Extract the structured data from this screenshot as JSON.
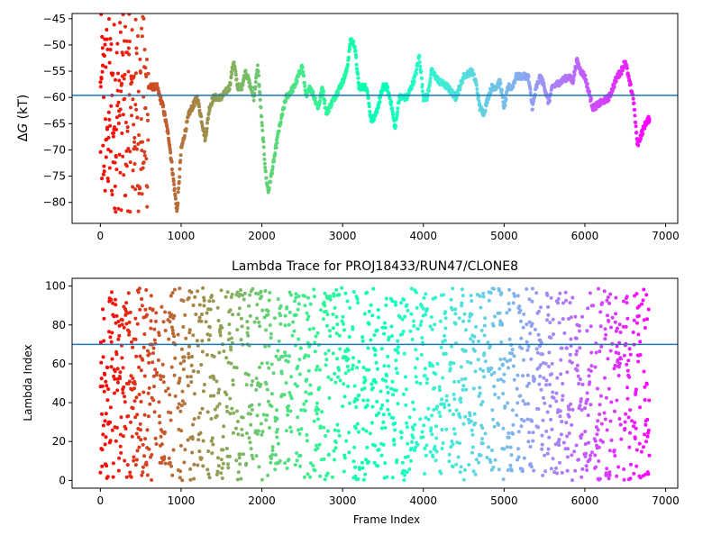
{
  "figure_title": "",
  "chart_data": [
    {
      "type": "scatter",
      "title": "",
      "xlabel": "",
      "ylabel": "ΔG (kT)",
      "ylabel_italic_part": "G",
      "xlim": [
        -350,
        7150
      ],
      "ylim": [
        -84,
        -44
      ],
      "xticks": [
        0,
        1000,
        2000,
        3000,
        4000,
        5000,
        6000,
        7000
      ],
      "yticks": [
        -80,
        -75,
        -70,
        -65,
        -60,
        -55,
        -50,
        -45
      ],
      "hline": -59.6,
      "hline_color": "#1f77b4",
      "colormap": "rainbow (red at start → violet at end)",
      "n_frames": 6800,
      "trace_keypoints": {
        "x": [
          600,
          700,
          780,
          850,
          900,
          950,
          1000,
          1100,
          1200,
          1300,
          1350,
          1400,
          1500,
          1600,
          1650,
          1700,
          1750,
          1800,
          1900,
          1950,
          2000,
          2050,
          2080,
          2150,
          2200,
          2300,
          2400,
          2500,
          2550,
          2600,
          2700,
          2750,
          2800,
          2900,
          3000,
          3050,
          3100,
          3150,
          3200,
          3300,
          3350,
          3400,
          3450,
          3500,
          3550,
          3600,
          3650,
          3700,
          3800,
          3850,
          3900,
          3950,
          4000,
          4050,
          4100,
          4200,
          4300,
          4400,
          4500,
          4600,
          4650,
          4700,
          4750,
          4800,
          4850,
          4900,
          4950,
          5000,
          5050,
          5100,
          5150,
          5200,
          5300,
          5350,
          5400,
          5450,
          5500,
          5550,
          5600,
          5700,
          5800,
          5850,
          5900,
          5950,
          6000,
          6100,
          6200,
          6300,
          6400,
          6450,
          6500,
          6550,
          6600,
          6650,
          6700,
          6750,
          6800
        ],
        "y": [
          -58,
          -58,
          -62,
          -68,
          -75,
          -82,
          -70,
          -63,
          -60,
          -68,
          -62,
          -60,
          -60,
          -58,
          -53,
          -58,
          -58,
          -55,
          -60,
          -54,
          -65,
          -75,
          -78,
          -72,
          -67,
          -60,
          -58,
          -54,
          -60,
          -58,
          -62,
          -58,
          -63,
          -60,
          -57,
          -55,
          -49,
          -50,
          -58,
          -58,
          -64,
          -64,
          -61,
          -58,
          -58,
          -61,
          -66,
          -60,
          -60,
          -58,
          -56,
          -52,
          -60,
          -60,
          -55,
          -57,
          -58,
          -60,
          -56,
          -55,
          -57,
          -62,
          -63,
          -60,
          -58,
          -58,
          -57,
          -62,
          -58,
          -58,
          -56,
          -56,
          -56,
          -62,
          -58,
          -56,
          -58,
          -61,
          -58,
          -57,
          -56,
          -57,
          -53,
          -55,
          -56,
          -62,
          -61,
          -60,
          -56,
          -55,
          -53,
          -57,
          -60,
          -69,
          -67,
          -65,
          -64
        ]
      },
      "early_scatter": {
        "x_range": [
          0,
          600
        ],
        "y_range": [
          -82,
          -44
        ]
      }
    },
    {
      "type": "scatter",
      "title": "Lambda Trace for PROJ18433/RUN47/CLONE8",
      "xlabel": "Frame Index",
      "ylabel": "Lambda Index",
      "xlim": [
        -350,
        7150
      ],
      "ylim": [
        -4,
        104
      ],
      "xticks": [
        0,
        1000,
        2000,
        3000,
        4000,
        5000,
        6000,
        7000
      ],
      "yticks": [
        0,
        20,
        40,
        60,
        80,
        100
      ],
      "hline": 70,
      "hline_color": "#1f77b4",
      "colormap": "rainbow (red at start → violet at end)",
      "n_frames": 6800,
      "value_range": [
        0,
        99
      ]
    }
  ]
}
